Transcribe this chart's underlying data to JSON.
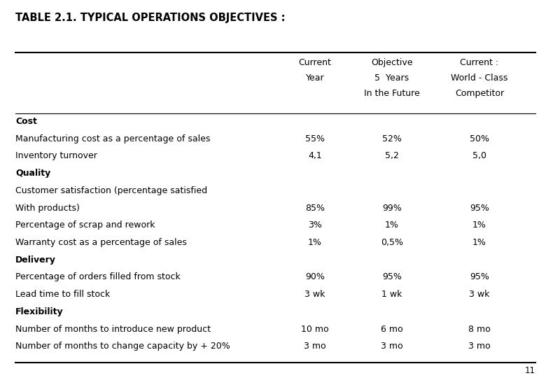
{
  "title": "TABLE 2.1. TYPICAL OPERATIONS OBJECTIVES :",
  "header_lines": [
    [
      "Current",
      "Year"
    ],
    [
      "Objective",
      "5  Years",
      "In the Future"
    ],
    [
      "Current :",
      "World - Class",
      "Competitor"
    ]
  ],
  "rows": [
    {
      "label": "Cost",
      "bold": true,
      "values": [
        "",
        "",
        ""
      ]
    },
    {
      "label": "Manufacturing cost as a percentage of sales",
      "bold": false,
      "values": [
        "55%",
        "52%",
        "50%"
      ]
    },
    {
      "label": "Inventory turnover",
      "bold": false,
      "values": [
        "4,1",
        "5,2",
        "5,0"
      ]
    },
    {
      "label": "Quality",
      "bold": true,
      "values": [
        "",
        "",
        ""
      ]
    },
    {
      "label": "Customer satisfaction (percentage satisfied",
      "bold": false,
      "values": [
        "",
        "",
        ""
      ]
    },
    {
      "label": "With products)",
      "bold": false,
      "values": [
        "85%",
        "99%",
        "95%"
      ]
    },
    {
      "label": "Percentage of scrap and rework",
      "bold": false,
      "values": [
        "3%",
        "1%",
        "1%"
      ]
    },
    {
      "label": "Warranty cost as a percentage of sales",
      "bold": false,
      "values": [
        "1%",
        "0,5%",
        "1%"
      ]
    },
    {
      "label": "Delivery",
      "bold": true,
      "values": [
        "",
        "",
        ""
      ]
    },
    {
      "label": "Percentage of orders filled from stock",
      "bold": false,
      "values": [
        "90%",
        "95%",
        "95%"
      ]
    },
    {
      "label": "Lead time to fill stock",
      "bold": false,
      "values": [
        "3 wk",
        "1 wk",
        "3 wk"
      ]
    },
    {
      "label": "Flexibility",
      "bold": true,
      "values": [
        "",
        "",
        ""
      ]
    },
    {
      "label": "Number of months to introduce new product",
      "bold": false,
      "values": [
        "10 mo",
        "6 mo",
        "8 mo"
      ]
    },
    {
      "label": "Number of months to change capacity by + 20%",
      "bold": false,
      "values": [
        "3 mo",
        "3 mo",
        "3 mo"
      ]
    }
  ],
  "page_number": "11",
  "bg_color": "#ffffff",
  "text_color": "#000000",
  "title_fontsize": 10.5,
  "header_fontsize": 9.0,
  "body_fontsize": 9.0,
  "fig_width": 7.8,
  "fig_height": 5.4,
  "dpi": 100
}
